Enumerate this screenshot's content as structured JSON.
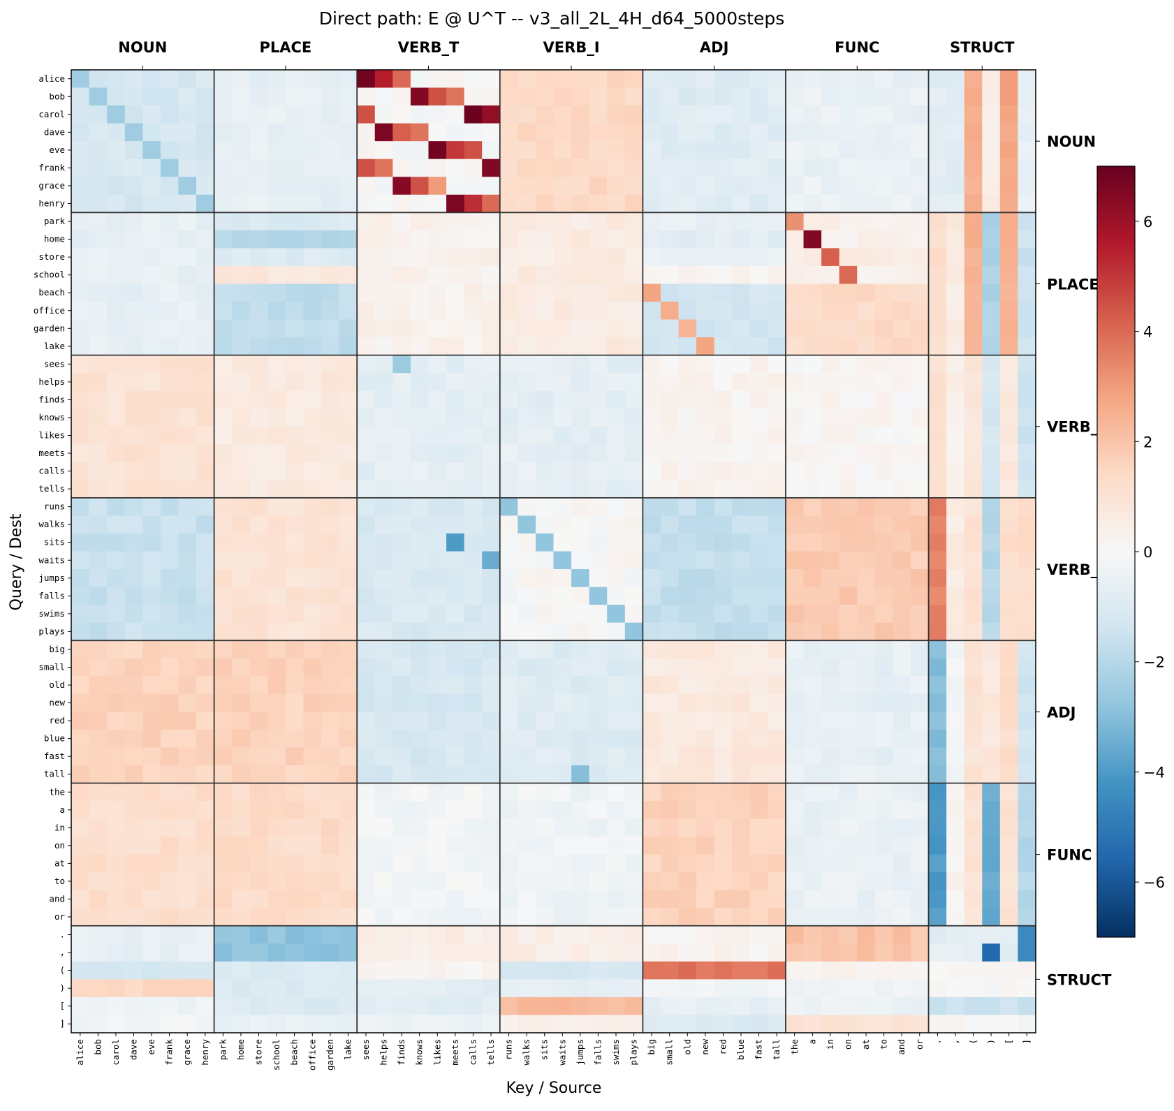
{
  "chart_data": {
    "type": "heatmap",
    "title": "Direct path: E @ U^T -- v3_all_2L_4H_d64_5000steps",
    "xlabel": "Key / Source",
    "ylabel": "Query / Dest",
    "tokens": [
      "alice",
      "bob",
      "carol",
      "dave",
      "eve",
      "frank",
      "grace",
      "henry",
      "park",
      "home",
      "store",
      "school",
      "beach",
      "office",
      "garden",
      "lake",
      "sees",
      "helps",
      "finds",
      "knows",
      "likes",
      "meets",
      "calls",
      "tells",
      "runs",
      "walks",
      "sits",
      "waits",
      "jumps",
      "falls",
      "swims",
      "plays",
      "big",
      "small",
      "old",
      "new",
      "red",
      "blue",
      "fast",
      "tall",
      "the",
      "a",
      "in",
      "on",
      "at",
      "to",
      "and",
      "or",
      ".",
      ",",
      "(",
      ")",
      "[",
      "]"
    ],
    "groups": [
      {
        "name": "NOUN",
        "size": 8
      },
      {
        "name": "PLACE",
        "size": 8
      },
      {
        "name": "VERB_T",
        "size": 8
      },
      {
        "name": "VERB_I",
        "size": 8
      },
      {
        "name": "ADJ",
        "size": 8
      },
      {
        "name": "FUNC",
        "size": 8
      },
      {
        "name": "STRUCT",
        "size": 6
      }
    ],
    "right_labels": [
      "NOUN",
      "PLACE",
      "VERB_",
      "VERB_",
      "ADJ",
      "FUNC",
      "STRUCT"
    ],
    "vmin": -7,
    "vmax": 7,
    "colormap": "RdBu_r",
    "colorbar_ticks": [
      6,
      4,
      2,
      0,
      -2,
      -4,
      -6
    ],
    "colorbar_tick_labels": [
      "6",
      "4",
      "2",
      "0",
      "−2",
      "−4",
      "−6"
    ],
    "block_means": [
      [
        -1.2,
        -0.6,
        0.0,
        1.4,
        -0.9,
        -0.5,
        0.0
      ],
      [
        -0.6,
        -1.8,
        0.3,
        0.6,
        -1.3,
        1.3,
        0.2
      ],
      [
        1.0,
        0.7,
        -0.7,
        -0.7,
        0.2,
        0.1,
        0.0
      ],
      [
        -1.6,
        1.0,
        -1.1,
        0.0,
        -1.7,
        1.8,
        1.0
      ],
      [
        1.6,
        1.6,
        -1.2,
        -0.9,
        0.7,
        -0.6,
        -0.6
      ],
      [
        1.2,
        1.3,
        -0.2,
        -0.3,
        1.6,
        -0.5,
        -1.3
      ],
      [
        -0.6,
        -2.8,
        0.5,
        0.5,
        0.2,
        2.0,
        -0.7
      ]
    ],
    "row_overrides": [
      {
        "row": "store",
        "block": "PLACE",
        "value": -1.0
      },
      {
        "row": "school",
        "block": "PLACE",
        "value": 0.8
      },
      {
        "row": "park",
        "block": "PLACE",
        "value": -1.0
      },
      {
        "row": "home",
        "block": "PLACE",
        "value": -2.0
      },
      {
        "row": "park",
        "block": "FUNC",
        "value": 0.4
      },
      {
        "row": "home",
        "block": "FUNC",
        "value": 0.3
      },
      {
        "row": "store",
        "block": "FUNC",
        "value": 0.6
      },
      {
        "row": "school",
        "block": "FUNC",
        "value": 0.3
      },
      {
        "row": "park",
        "block": "ADJ",
        "value": -0.5
      },
      {
        "row": "home",
        "block": "ADJ",
        "value": -0.8
      },
      {
        "row": "store",
        "block": "ADJ",
        "value": -0.5
      },
      {
        "row": "school",
        "block": "ADJ",
        "value": 0.2
      },
      {
        "row": "(",
        "block": "ADJ",
        "value": 3.8
      },
      {
        "row": ")",
        "block": "ADJ",
        "value": -0.2
      },
      {
        "row": "[",
        "block": "ADJ",
        "value": -0.6
      },
      {
        "row": "]",
        "block": "ADJ",
        "value": -1.0
      },
      {
        "row": "[",
        "block": "VERB_I",
        "value": 2.3
      },
      {
        "row": "(",
        "block": "VERB_I",
        "value": -1.2
      },
      {
        "row": ")",
        "block": "VERB_I",
        "value": -0.7
      },
      {
        "row": "]",
        "block": "VERB_I",
        "value": 0.3
      },
      {
        "row": "(",
        "block": "FUNC",
        "value": 0.2
      },
      {
        "row": ")",
        "block": "FUNC",
        "value": -0.3
      },
      {
        "row": "[",
        "block": "FUNC",
        "value": -0.4
      },
      {
        "row": "]",
        "block": "FUNC",
        "value": 1.0
      },
      {
        "row": "(",
        "block": "NOUN",
        "value": -1.3
      },
      {
        "row": ")",
        "block": "NOUN",
        "value": 1.5
      },
      {
        "row": "[",
        "block": "NOUN",
        "value": -0.3
      },
      {
        "row": "]",
        "block": "NOUN",
        "value": -0.2
      },
      {
        "row": "(",
        "block": "PLACE",
        "value": -1.0
      },
      {
        "row": ")",
        "block": "PLACE",
        "value": -1.0
      },
      {
        "row": "[",
        "block": "PLACE",
        "value": -1.0
      },
      {
        "row": "]",
        "block": "PLACE",
        "value": -0.5
      },
      {
        "row": "(",
        "block": "VERB_T",
        "value": 0.2
      },
      {
        "row": ")",
        "block": "VERB_T",
        "value": -0.8
      },
      {
        "row": "[",
        "block": "VERB_T",
        "value": -0.8
      },
      {
        "row": "]",
        "block": "VERB_T",
        "value": -0.3
      },
      {
        "row": "(",
        "block": "STRUCT",
        "value": 0.1
      },
      {
        "row": ")",
        "block": "STRUCT",
        "value": 0.0
      },
      {
        "row": "[",
        "block": "STRUCT",
        "value": -1.5
      },
      {
        "row": "]",
        "block": "STRUCT",
        "value": 0.0
      }
    ],
    "struct_columns": [
      {
        "col": ".",
        "rows_by_group": [
          -0.8,
          1.2,
          1.1,
          3.5,
          -3.0,
          -4.0,
          -2.0
        ]
      },
      {
        "col": ",",
        "rows_by_group": [
          -0.8,
          0.6,
          0.4,
          0.6,
          -0.2,
          0.2,
          0.5
        ]
      },
      {
        "col": "(",
        "rows_by_group": [
          2.5,
          2.5,
          0.8,
          1.0,
          1.0,
          1.0,
          0.3
        ]
      },
      {
        "col": ")",
        "rows_by_group": [
          0.5,
          -2.2,
          -1.2,
          -2.0,
          0.8,
          -3.5,
          -2.2
        ]
      },
      {
        "col": "[",
        "rows_by_group": [
          2.8,
          2.5,
          0.8,
          1.2,
          1.3,
          1.0,
          0.8
        ]
      },
      {
        "col": "]",
        "rows_by_group": [
          -0.6,
          -1.5,
          -1.5,
          1.3,
          -1.4,
          -2.0,
          -3.5
        ]
      }
    ],
    "cell_overrides": [
      {
        "row": "alice",
        "col": "sees",
        "value": 6.8
      },
      {
        "row": "alice",
        "col": "helps",
        "value": 5.5
      },
      {
        "row": "alice",
        "col": "finds",
        "value": 4.0
      },
      {
        "row": "bob",
        "col": "knows",
        "value": 6.5
      },
      {
        "row": "bob",
        "col": "likes",
        "value": 4.5
      },
      {
        "row": "bob",
        "col": "meets",
        "value": 3.8
      },
      {
        "row": "carol",
        "col": "sees",
        "value": 4.5
      },
      {
        "row": "carol",
        "col": "calls",
        "value": 6.9
      },
      {
        "row": "carol",
        "col": "tells",
        "value": 6.2
      },
      {
        "row": "dave",
        "col": "helps",
        "value": 6.6
      },
      {
        "row": "dave",
        "col": "finds",
        "value": 4.2
      },
      {
        "row": "dave",
        "col": "knows",
        "value": 3.8
      },
      {
        "row": "eve",
        "col": "likes",
        "value": 6.8
      },
      {
        "row": "eve",
        "col": "meets",
        "value": 5.0
      },
      {
        "row": "eve",
        "col": "calls",
        "value": 4.5
      },
      {
        "row": "frank",
        "col": "sees",
        "value": 4.5
      },
      {
        "row": "frank",
        "col": "helps",
        "value": 3.8
      },
      {
        "row": "frank",
        "col": "tells",
        "value": 6.5
      },
      {
        "row": "grace",
        "col": "finds",
        "value": 6.4
      },
      {
        "row": "grace",
        "col": "knows",
        "value": 4.5
      },
      {
        "row": "grace",
        "col": "likes",
        "value": 3.0
      },
      {
        "row": "henry",
        "col": "meets",
        "value": 6.6
      },
      {
        "row": "henry",
        "col": "calls",
        "value": 5.2
      },
      {
        "row": "henry",
        "col": "tells",
        "value": 4.0
      },
      {
        "row": "home",
        "col": "the",
        "value": 0.5
      },
      {
        "row": "home",
        "col": "a",
        "value": 6.5
      },
      {
        "row": "store",
        "col": "in",
        "value": 4.2
      },
      {
        "row": "school",
        "col": "on",
        "value": 4.0
      },
      {
        "row": "park",
        "col": "the",
        "value": 3.2
      },
      {
        "row": "beach",
        "col": "big",
        "value": 2.8
      },
      {
        "row": "office",
        "col": "small",
        "value": 2.6
      },
      {
        "row": "garden",
        "col": "old",
        "value": 2.4
      },
      {
        "row": "lake",
        "col": "new",
        "value": 2.8
      },
      {
        "row": "sees",
        "col": "finds",
        "value": -2.6
      },
      {
        "row": "sits",
        "col": "meets",
        "value": -4.0
      },
      {
        "row": "waits",
        "col": "tells",
        "value": -3.5
      },
      {
        "row": "tall",
        "col": "jumps",
        "value": -3.0
      },
      {
        "row": ",",
        "col": ")",
        "value": -5.5
      },
      {
        "row": ",",
        "col": "]",
        "value": -4.5
      },
      {
        "row": ".",
        "col": "]",
        "value": -4.5
      }
    ]
  }
}
